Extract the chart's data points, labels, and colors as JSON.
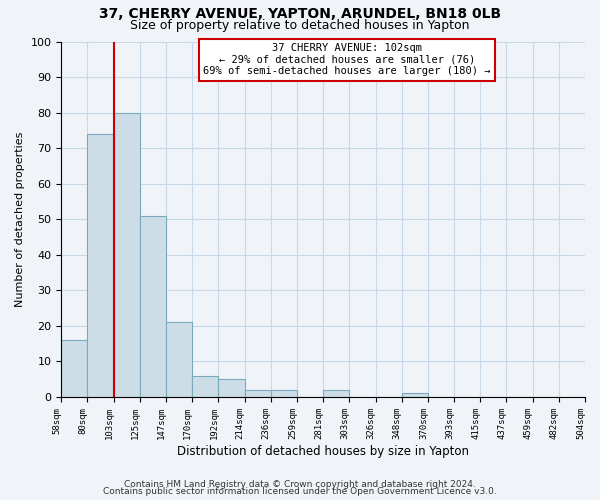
{
  "title": "37, CHERRY AVENUE, YAPTON, ARUNDEL, BN18 0LB",
  "subtitle": "Size of property relative to detached houses in Yapton",
  "xlabel": "Distribution of detached houses by size in Yapton",
  "ylabel": "Number of detached properties",
  "n_bins": 20,
  "bar_heights": [
    16,
    74,
    80,
    51,
    21,
    6,
    5,
    2,
    2,
    0,
    2,
    0,
    0,
    1,
    0,
    0,
    0,
    0,
    0,
    0
  ],
  "bar_color": "#ccdde8",
  "bar_edge_color": "#7aaabb",
  "property_bin": 2,
  "property_line_color": "#cc0000",
  "annotation_line1": "37 CHERRY AVENUE: 102sqm",
  "annotation_line2": "← 29% of detached houses are smaller (76)",
  "annotation_line3": "69% of semi-detached houses are larger (180) →",
  "annotation_box_color": "#ffffff",
  "annotation_box_edge_color": "#cc0000",
  "ylim": [
    0,
    100
  ],
  "yticks": [
    0,
    10,
    20,
    30,
    40,
    50,
    60,
    70,
    80,
    90,
    100
  ],
  "tick_labels": [
    "58sqm",
    "80sqm",
    "103sqm",
    "125sqm",
    "147sqm",
    "170sqm",
    "192sqm",
    "214sqm",
    "236sqm",
    "259sqm",
    "281sqm",
    "303sqm",
    "326sqm",
    "348sqm",
    "370sqm",
    "393sqm",
    "415sqm",
    "437sqm",
    "459sqm",
    "482sqm",
    "504sqm"
  ],
  "footer_line1": "Contains HM Land Registry data © Crown copyright and database right 2024.",
  "footer_line2": "Contains public sector information licensed under the Open Government Licence v3.0.",
  "background_color": "#f0f4f8",
  "grid_color": "#c8d8e8",
  "title_fontsize": 10,
  "subtitle_fontsize": 9
}
